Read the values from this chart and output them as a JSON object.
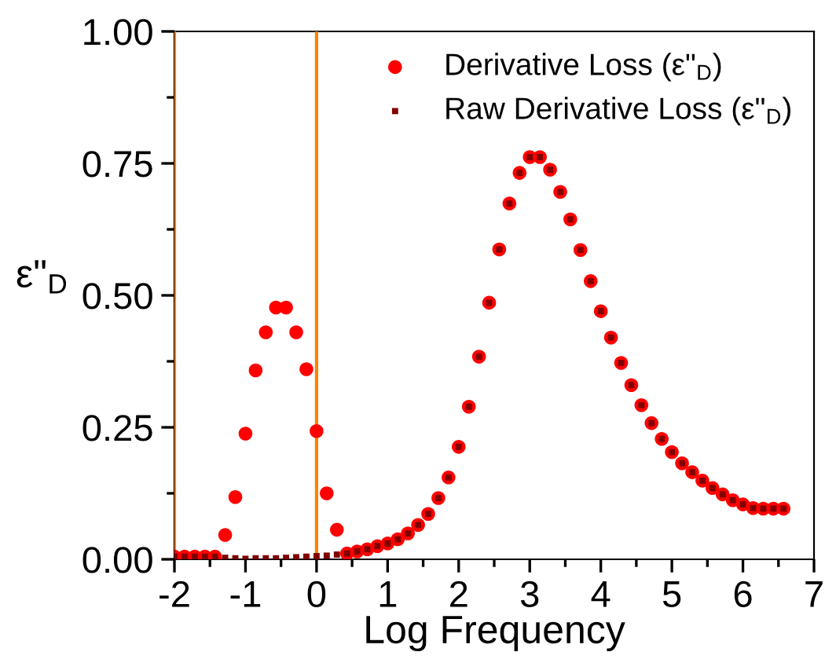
{
  "chart_data": {
    "type": "scatter",
    "xlabel": "Log Frequency",
    "ylabel": "ε\"$_{D}$",
    "x": [
      -2.0,
      -1.857,
      -1.714,
      -1.571,
      -1.429,
      -1.286,
      -1.143,
      -1.0,
      -0.857,
      -0.714,
      -0.571,
      -0.429,
      -0.286,
      -0.143,
      0.0,
      0.143,
      0.286,
      0.429,
      0.571,
      0.714,
      0.857,
      1.0,
      1.143,
      1.286,
      1.429,
      1.571,
      1.714,
      1.857,
      2.0,
      2.143,
      2.286,
      2.429,
      2.571,
      2.714,
      2.857,
      3.0,
      3.143,
      3.286,
      3.429,
      3.571,
      3.714,
      3.857,
      4.0,
      4.143,
      4.286,
      4.429,
      4.571,
      4.714,
      4.857,
      5.0,
      5.143,
      5.286,
      5.429,
      5.571,
      5.714,
      5.857,
      6.0,
      6.143,
      6.286,
      6.429,
      6.571
    ],
    "series": [
      {
        "name": "Derivative Loss (ε\"$_{D}$)",
        "color": "#ff0000",
        "marker": "circle",
        "values": [
          0.005,
          0.005,
          0.005,
          0.005,
          0.005,
          0.046,
          0.118,
          0.238,
          0.358,
          0.43,
          0.477,
          0.477,
          0.43,
          0.36,
          0.243,
          0.125,
          0.056,
          0.011,
          0.015,
          0.019,
          0.025,
          0.03,
          0.038,
          0.049,
          0.065,
          0.086,
          0.116,
          0.155,
          0.213,
          0.289,
          0.384,
          0.486,
          0.587,
          0.674,
          0.732,
          0.762,
          0.762,
          0.738,
          0.696,
          0.644,
          0.586,
          0.527,
          0.47,
          0.42,
          0.372,
          0.33,
          0.292,
          0.258,
          0.228,
          0.203,
          0.182,
          0.165,
          0.149,
          0.135,
          0.123,
          0.112,
          0.104,
          0.097,
          0.096,
          0.096,
          0.096
        ]
      },
      {
        "name": "Raw Derivative Loss (ε\"$_{D}$)",
        "color": "#800000",
        "marker": "square",
        "values": [
          0.005,
          0.005,
          0.005,
          0.005,
          0.005,
          0.003,
          0.002,
          0.001,
          0.002,
          0.002,
          0.002,
          0.003,
          0.004,
          0.005,
          0.006,
          0.007,
          0.009,
          0.011,
          0.015,
          0.019,
          0.025,
          0.03,
          0.038,
          0.049,
          0.065,
          0.086,
          0.116,
          0.155,
          0.213,
          0.289,
          0.384,
          0.486,
          0.587,
          0.674,
          0.732,
          0.762,
          0.762,
          0.738,
          0.696,
          0.644,
          0.586,
          0.527,
          0.47,
          0.42,
          0.372,
          0.33,
          0.292,
          0.258,
          0.228,
          0.203,
          0.182,
          0.165,
          0.149,
          0.135,
          0.123,
          0.112,
          0.104,
          0.097,
          0.096,
          0.096,
          0.096
        ]
      }
    ],
    "xlim": [
      -2,
      7
    ],
    "ylim": [
      0,
      1
    ],
    "xticks": [
      -2,
      {
        "value": -1.5,
        "label": null
      },
      -1,
      {
        "value": -0.5,
        "label": null
      },
      0,
      {
        "value": 0.5,
        "label": null
      },
      1,
      {
        "value": 1.5,
        "label": null
      },
      2,
      {
        "value": 2.5,
        "label": null
      },
      3,
      {
        "value": 3.5,
        "label": null
      },
      4,
      {
        "value": 4.5,
        "label": null
      },
      5,
      {
        "value": 5.5,
        "label": null
      },
      6,
      {
        "value": 6.5,
        "label": null
      },
      7
    ],
    "yticks": [
      {
        "value": 0,
        "label": "0.00"
      },
      {
        "value": 0.125,
        "label": null
      },
      {
        "value": 0.25,
        "label": "0.25"
      },
      {
        "value": 0.375,
        "label": null
      },
      {
        "value": 0.5,
        "label": "0.50"
      },
      {
        "value": 0.625,
        "label": null
      },
      {
        "value": 0.75,
        "label": "0.75"
      },
      {
        "value": 0.875,
        "label": null
      },
      {
        "value": 1,
        "label": "1.00"
      }
    ],
    "ref_lines": [
      {
        "axis": "x",
        "value": -2,
        "color": "#ff8000"
      },
      {
        "axis": "x",
        "value": 0,
        "color": "#ff8000"
      }
    ],
    "legend": "top right",
    "grid": false
  }
}
